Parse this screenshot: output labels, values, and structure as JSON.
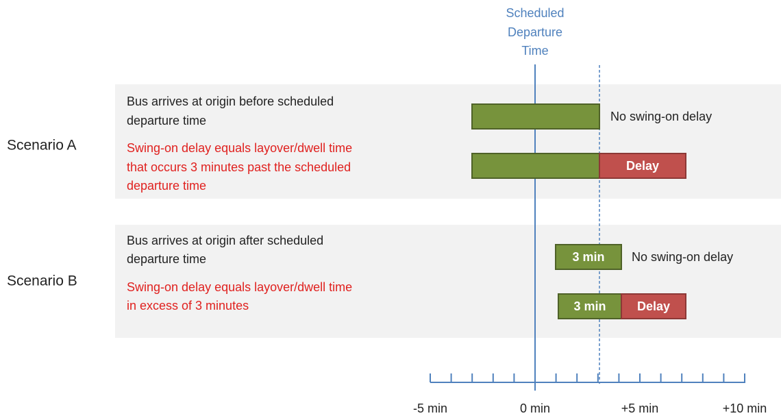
{
  "header": {
    "title_lines": [
      "Scheduled",
      "Departure",
      "Time"
    ]
  },
  "scenarios": [
    {
      "label": "Scenario A",
      "condition_lines": [
        "Bus arrives at origin before scheduled",
        "departure time"
      ],
      "definition_lines": [
        "Swing-on delay equals layover/dwell time",
        "that occurs 3 minutes past the scheduled",
        "departure time"
      ],
      "row1_outcome": "No swing-on delay",
      "row2_delay": "Delay"
    },
    {
      "label": "Scenario B",
      "condition_lines": [
        "Bus arrives at origin after scheduled",
        "departure time"
      ],
      "definition_lines": [
        "Swing-on delay equals layover/dwell time",
        "in excess of 3 minutes"
      ],
      "row1_bar": "3 min",
      "row1_outcome": "No swing-on delay",
      "row2_bar": "3 min",
      "row2_delay": "Delay"
    }
  ],
  "axis": {
    "labels": [
      "-5 min",
      "0 min",
      "+5 min",
      "+10 min"
    ]
  }
}
